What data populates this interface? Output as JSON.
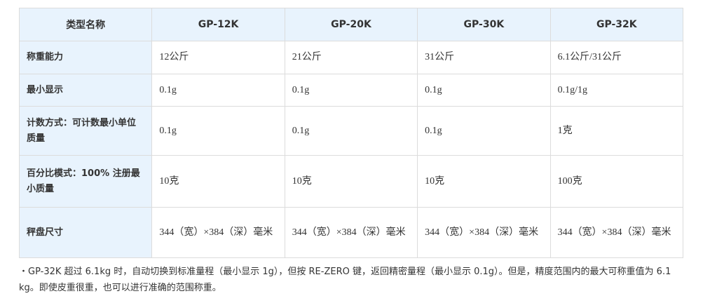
{
  "table": {
    "headers": [
      "类型名称",
      "GP-12K",
      "GP-20K",
      "GP-30K",
      "GP-32K"
    ],
    "rows": [
      {
        "label": "称重能力",
        "values": [
          "12公斤",
          "21公斤",
          "31公斤",
          "6.1公斤/31公斤"
        ]
      },
      {
        "label": "最小显示",
        "values": [
          "0.1g",
          "0.1g",
          "0.1g",
          "0.1g/1g"
        ]
      },
      {
        "label": "计数方式：可计数最小单位质量",
        "values": [
          "0.1g",
          "0.1g",
          "0.1g",
          "1克"
        ]
      },
      {
        "label": "百分比模式：100% 注册最小质量",
        "values": [
          "10克",
          "10克",
          "10克",
          "100克"
        ]
      },
      {
        "label": "秤盘尺寸",
        "values": [
          "344（宽）×384（深）毫米",
          "344（宽）×384（深）毫米",
          "344（宽）×384（深）毫米",
          "344（宽）×384（深）毫米"
        ]
      }
    ]
  },
  "note": "・GP-32K 超过 6.1kg 时，自动切换到标准量程（最小显示 1g），但按 RE-ZERO 键，返回精密量程（最小显示 0.1g）。但是，精度范围内的最大可称重值为 6.1 kg。即使皮重很重，也可以进行准确的范围称重。"
}
